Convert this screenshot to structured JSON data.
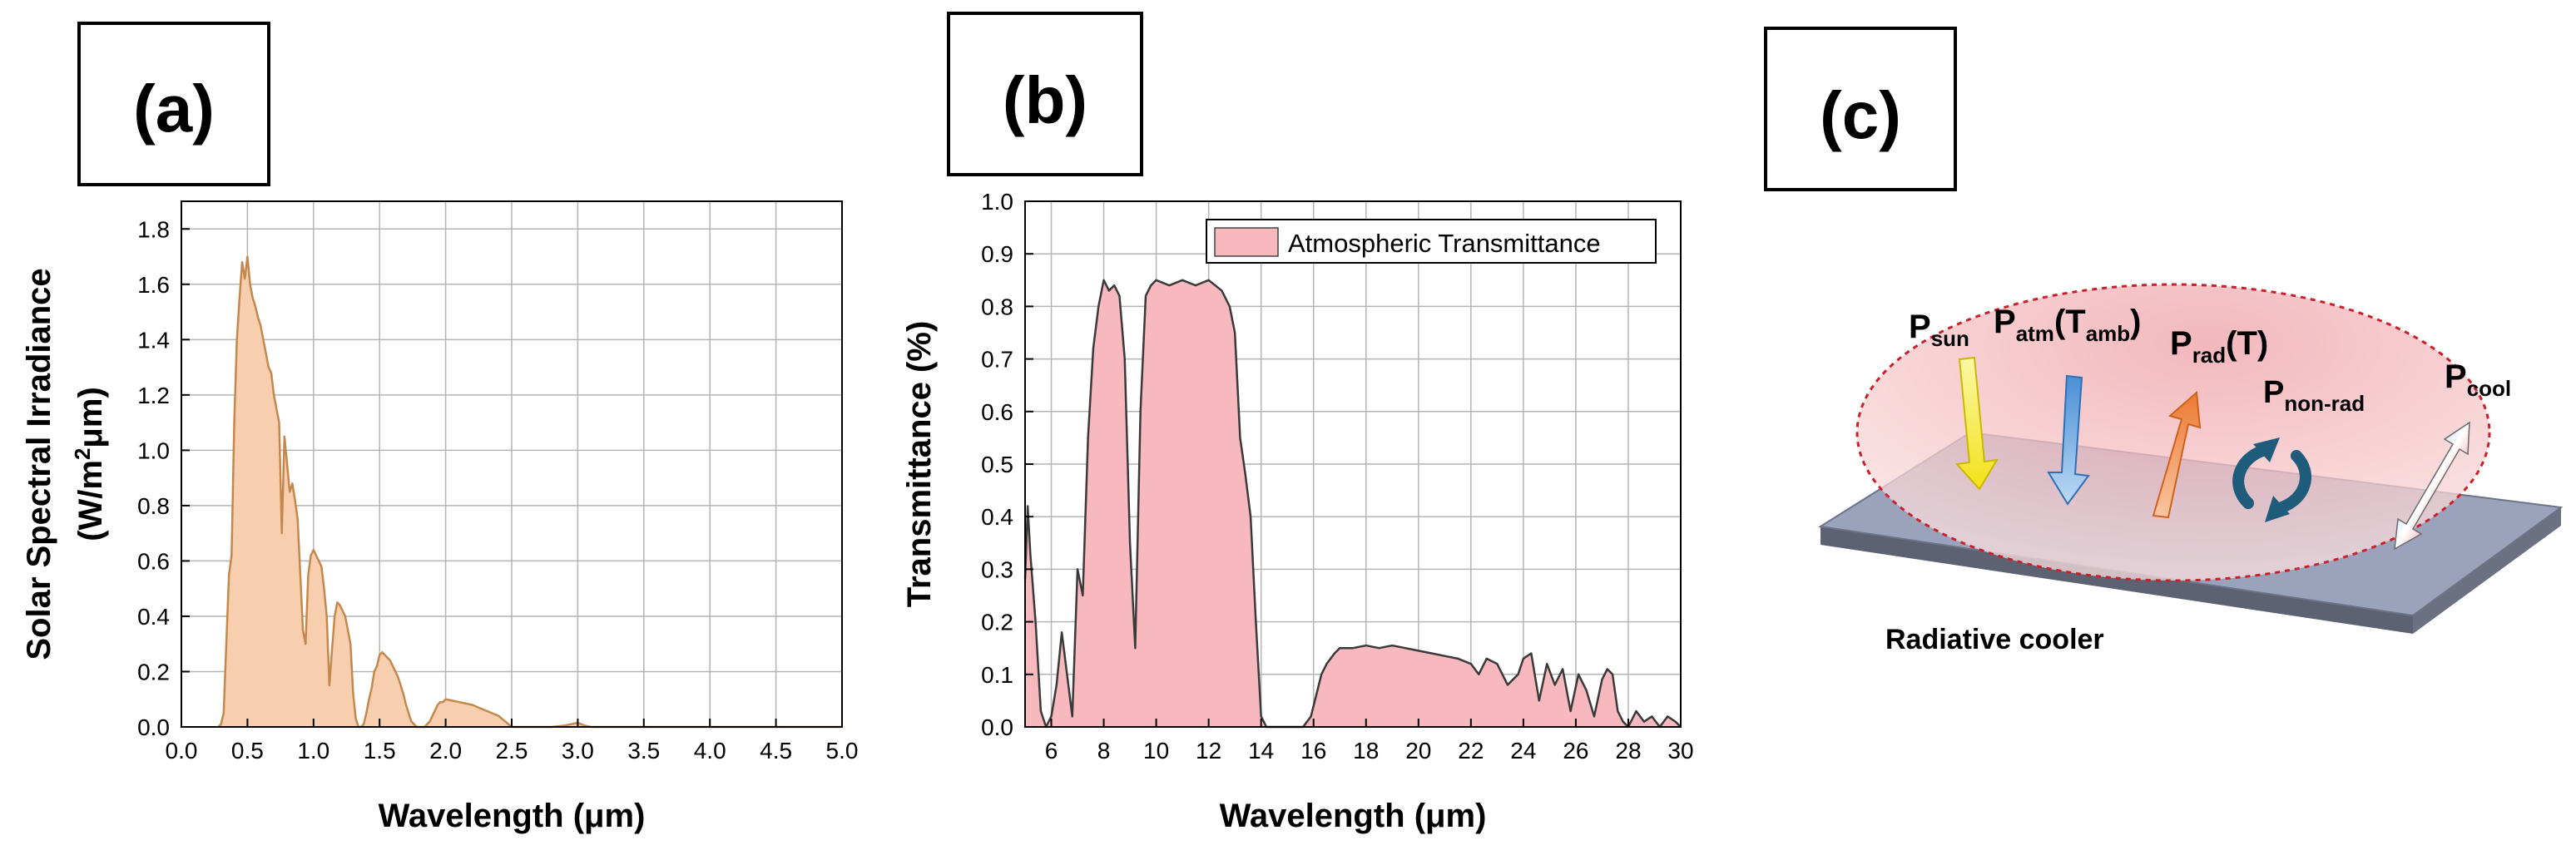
{
  "panels": {
    "a": {
      "label": "(a)"
    },
    "b": {
      "label": "(b)"
    },
    "c": {
      "label": "(c)",
      "surface_label": "Radiative cooler",
      "terms": [
        {
          "main": "P",
          "sub": "sun"
        },
        {
          "main": "P",
          "sub": "atm",
          "after": "(T",
          "sub2": "amb",
          "close": ")"
        },
        {
          "main": "P",
          "sub": "rad",
          "after": "(T)"
        },
        {
          "main": "P",
          "sub": "non-rad"
        },
        {
          "main": "P",
          "sub": "cool"
        }
      ],
      "colors": {
        "sun": "#f5ee3c",
        "atm": "#7fb6e8",
        "rad": "#f39a62",
        "nonrad": "#1f5b7a",
        "cool_top": "#6aa9e0",
        "cool_bottom": "#d9141e",
        "plate": "#9aa3bb",
        "dome": "#f2b3b3"
      }
    }
  },
  "chart_data": [
    {
      "type": "area",
      "ylabel_line1": "Solar Spectral Irradiance",
      "ylabel_line2_pre": "(W/m",
      "ylabel_line2_sup": "2",
      "ylabel_line2_post": "μm)",
      "xlabel": "Wavelength (μm)",
      "xlim": [
        0.0,
        5.0
      ],
      "ylim": [
        0.0,
        1.9
      ],
      "xticks": [
        "0.0",
        "0.5",
        "1.0",
        "1.5",
        "2.0",
        "2.5",
        "3.0",
        "3.5",
        "4.0",
        "4.5",
        "5.0"
      ],
      "yticks": [
        "0.0",
        "0.2",
        "0.4",
        "0.6",
        "0.8",
        "1.0",
        "1.2",
        "1.4",
        "1.6",
        "1.8"
      ],
      "grid": true,
      "fill_color": "#f7cfae",
      "line_color": "#c4884e",
      "x": [
        0.28,
        0.3,
        0.32,
        0.34,
        0.36,
        0.38,
        0.4,
        0.42,
        0.44,
        0.46,
        0.48,
        0.5,
        0.52,
        0.54,
        0.56,
        0.58,
        0.6,
        0.62,
        0.64,
        0.66,
        0.68,
        0.7,
        0.72,
        0.74,
        0.76,
        0.78,
        0.8,
        0.82,
        0.84,
        0.86,
        0.88,
        0.9,
        0.92,
        0.94,
        0.96,
        0.98,
        1.0,
        1.02,
        1.04,
        1.06,
        1.08,
        1.1,
        1.12,
        1.14,
        1.16,
        1.18,
        1.2,
        1.22,
        1.24,
        1.26,
        1.28,
        1.3,
        1.32,
        1.34,
        1.36,
        1.38,
        1.4,
        1.42,
        1.44,
        1.46,
        1.48,
        1.5,
        1.52,
        1.54,
        1.56,
        1.58,
        1.6,
        1.62,
        1.64,
        1.66,
        1.68,
        1.7,
        1.72,
        1.74,
        1.76,
        1.78,
        1.8,
        1.82,
        1.84,
        1.86,
        1.88,
        1.9,
        1.92,
        1.94,
        1.96,
        1.98,
        2.0,
        2.05,
        2.1,
        2.15,
        2.2,
        2.25,
        2.3,
        2.35,
        2.4,
        2.45,
        2.5,
        2.55,
        2.6,
        2.7,
        2.8,
        2.9,
        2.95,
        3.0,
        3.05,
        3.1,
        3.2,
        3.4,
        3.6,
        3.8,
        4.0,
        4.5,
        5.0
      ],
      "y": [
        0.0,
        0.01,
        0.05,
        0.3,
        0.55,
        0.62,
        1.1,
        1.4,
        1.55,
        1.68,
        1.62,
        1.7,
        1.6,
        1.55,
        1.52,
        1.48,
        1.45,
        1.4,
        1.35,
        1.3,
        1.28,
        1.2,
        1.15,
        1.1,
        0.7,
        1.05,
        0.95,
        0.85,
        0.88,
        0.82,
        0.75,
        0.55,
        0.35,
        0.3,
        0.55,
        0.62,
        0.64,
        0.62,
        0.6,
        0.58,
        0.5,
        0.4,
        0.15,
        0.28,
        0.4,
        0.45,
        0.44,
        0.42,
        0.4,
        0.35,
        0.3,
        0.12,
        0.03,
        0.0,
        0.0,
        0.01,
        0.05,
        0.1,
        0.14,
        0.2,
        0.22,
        0.26,
        0.27,
        0.26,
        0.25,
        0.24,
        0.22,
        0.2,
        0.18,
        0.15,
        0.12,
        0.08,
        0.05,
        0.02,
        0.01,
        0.0,
        0.0,
        0.0,
        0.0,
        0.01,
        0.02,
        0.04,
        0.06,
        0.08,
        0.09,
        0.09,
        0.1,
        0.095,
        0.09,
        0.085,
        0.08,
        0.07,
        0.06,
        0.05,
        0.04,
        0.02,
        0.0,
        0.0,
        0.0,
        0.0,
        0.0,
        0.005,
        0.01,
        0.015,
        0.005,
        0.0,
        0.0,
        0.0,
        0.0,
        0.0,
        0.0,
        0.0,
        0.0
      ]
    },
    {
      "type": "area",
      "ylabel": "Transmittance (%)",
      "xlabel": "Wavelength (μm)",
      "legend": "Atmospheric Transmittance",
      "legend_position": "top-right",
      "xlim": [
        5.0,
        30.0
      ],
      "ylim": [
        0.0,
        1.0
      ],
      "xticks": [
        "6",
        "8",
        "10",
        "12",
        "14",
        "16",
        "18",
        "20",
        "22",
        "24",
        "26",
        "28",
        "30"
      ],
      "xtick_values": [
        6,
        8,
        10,
        12,
        14,
        16,
        18,
        20,
        22,
        24,
        26,
        28,
        30
      ],
      "yticks": [
        "0.0",
        "0.1",
        "0.2",
        "0.3",
        "0.4",
        "0.5",
        "0.6",
        "0.7",
        "0.8",
        "0.9",
        "1.0"
      ],
      "grid": true,
      "fill_color": "#f7b9bd",
      "line_color": "#3a3a3a",
      "x": [
        5.0,
        5.1,
        5.2,
        5.4,
        5.6,
        5.8,
        6.0,
        6.2,
        6.4,
        6.6,
        6.8,
        7.0,
        7.2,
        7.4,
        7.6,
        7.8,
        8.0,
        8.2,
        8.4,
        8.6,
        8.8,
        9.0,
        9.2,
        9.4,
        9.6,
        9.8,
        10.0,
        10.5,
        11.0,
        11.5,
        12.0,
        12.5,
        12.8,
        13.0,
        13.2,
        13.4,
        13.6,
        13.8,
        14.0,
        14.2,
        14.4,
        14.8,
        15.2,
        15.6,
        15.9,
        16.1,
        16.3,
        16.5,
        16.8,
        17.0,
        17.5,
        18.0,
        18.5,
        19.0,
        19.5,
        20.0,
        20.5,
        21.0,
        21.5,
        22.0,
        22.3,
        22.6,
        23.0,
        23.4,
        23.8,
        24.0,
        24.3,
        24.6,
        24.9,
        25.2,
        25.5,
        25.8,
        26.1,
        26.4,
        26.7,
        27.0,
        27.2,
        27.4,
        27.6,
        27.8,
        28.0,
        28.3,
        28.6,
        28.9,
        29.2,
        29.5,
        29.8,
        30.0
      ],
      "y": [
        0.28,
        0.42,
        0.33,
        0.2,
        0.03,
        0.0,
        0.02,
        0.08,
        0.18,
        0.1,
        0.02,
        0.3,
        0.25,
        0.55,
        0.72,
        0.8,
        0.85,
        0.83,
        0.84,
        0.82,
        0.7,
        0.35,
        0.15,
        0.6,
        0.82,
        0.84,
        0.85,
        0.84,
        0.85,
        0.84,
        0.85,
        0.83,
        0.8,
        0.75,
        0.55,
        0.48,
        0.4,
        0.2,
        0.02,
        0.0,
        0.0,
        0.0,
        0.0,
        0.0,
        0.02,
        0.06,
        0.1,
        0.12,
        0.14,
        0.15,
        0.15,
        0.155,
        0.15,
        0.155,
        0.15,
        0.145,
        0.14,
        0.135,
        0.13,
        0.12,
        0.1,
        0.13,
        0.12,
        0.08,
        0.1,
        0.13,
        0.14,
        0.05,
        0.12,
        0.08,
        0.11,
        0.03,
        0.1,
        0.07,
        0.02,
        0.09,
        0.11,
        0.1,
        0.03,
        0.01,
        0.0,
        0.03,
        0.01,
        0.02,
        0.0,
        0.02,
        0.01,
        0.0
      ]
    }
  ]
}
